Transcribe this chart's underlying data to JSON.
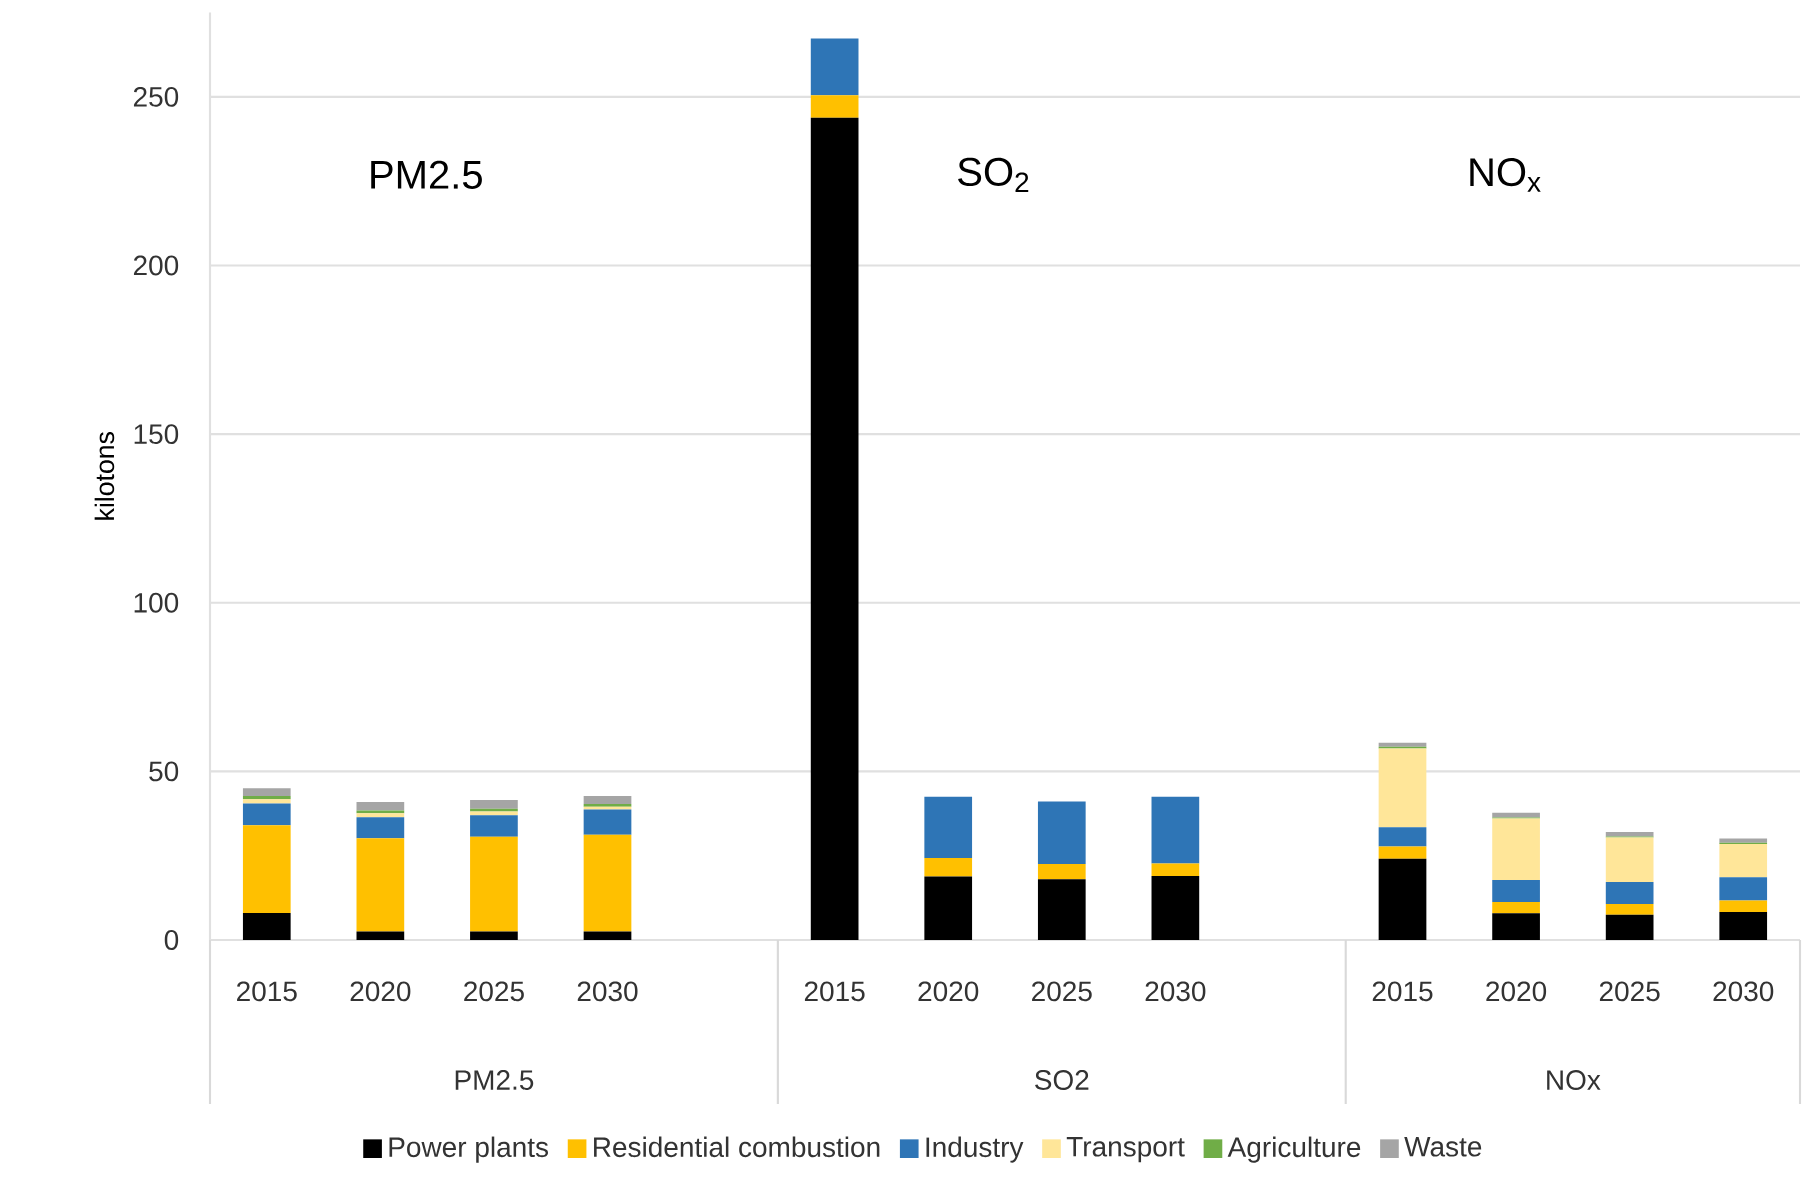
{
  "chart_data": {
    "type": "bar",
    "stacked": true,
    "ylabel": "kilotons",
    "categories": [
      "2015",
      "2020",
      "2025",
      "2030",
      null,
      "2015",
      "2020",
      "2025",
      "2030",
      null,
      "2015",
      "2020",
      "2025",
      "2030"
    ],
    "series": [
      {
        "name": "Power plants",
        "color": "#000000",
        "values": [
          8,
          2.5,
          2.5,
          2.5,
          null,
          243.8,
          18.8,
          18,
          19,
          null,
          24.1,
          7.9,
          7.5,
          8.3
        ]
      },
      {
        "name": "Residential combustion",
        "color": "#ffc000",
        "values": [
          26,
          27.7,
          28.1,
          28.7,
          null,
          6.7,
          5.5,
          4.5,
          3.7,
          null,
          3.6,
          3.4,
          3.2,
          3.4
        ]
      },
      {
        "name": "Industry",
        "color": "#2e75b6",
        "values": [
          6.5,
          6.2,
          6.4,
          7.5,
          null,
          16.8,
          18.2,
          18.6,
          19.8,
          null,
          5.7,
          6.5,
          6.5,
          6.9
        ]
      },
      {
        "name": "Transport",
        "color": "#ffe699",
        "values": [
          1.2,
          1.2,
          1.1,
          0.8,
          null,
          0,
          0,
          0,
          0,
          null,
          23.4,
          18.2,
          13.2,
          9.9
        ]
      },
      {
        "name": "Agriculture",
        "color": "#70ad47",
        "values": [
          1,
          0.8,
          0.8,
          0.8,
          null,
          0,
          0,
          0,
          0,
          null,
          0.5,
          0.3,
          0.3,
          0.3
        ]
      },
      {
        "name": "Waste",
        "color": "#a5a5a5",
        "values": [
          2.3,
          2.5,
          2.6,
          2.4,
          null,
          0,
          0,
          0,
          0,
          null,
          1.2,
          1.4,
          1.3,
          1.3
        ]
      }
    ],
    "ylim": [
      0,
      275
    ],
    "yticks": [
      0,
      50,
      100,
      150,
      200,
      250
    ],
    "grid": "y",
    "legend": "bottom",
    "annotations": [
      "PM2.5",
      "SO$_{2}$",
      "NO$_{x}$",
      "PM2.5",
      "SO2",
      "NOx"
    ]
  }
}
